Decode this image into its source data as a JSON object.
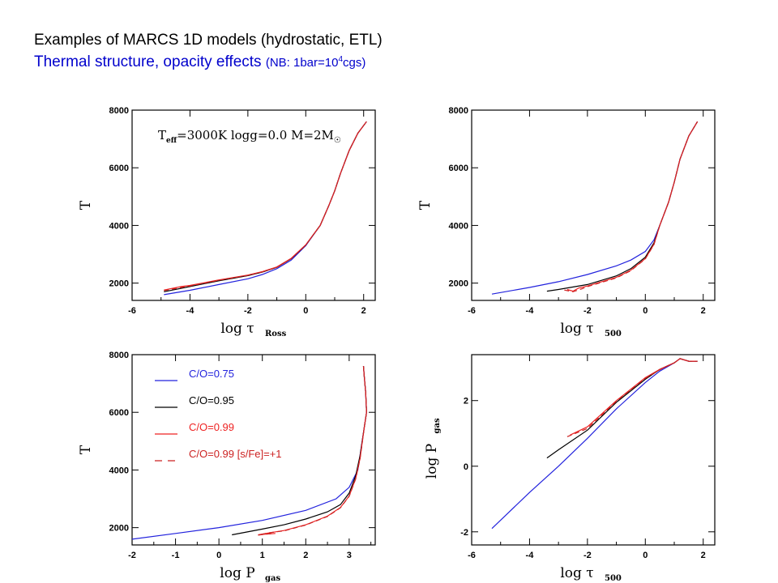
{
  "header": {
    "title": "Examples of MARCS 1D models (hydrostatic, ETL)",
    "subtitle_main": "Thermal structure, opacity effects",
    "subtitle_note_prefix": "(NB: 1bar=10",
    "subtitle_note_exp": "4",
    "subtitle_note_suffix": "cgs)"
  },
  "colors": {
    "c075": "#2222dd",
    "c095": "#000000",
    "c099": "#ee2222",
    "c099sfe": "#cc2222"
  },
  "chart_data": [
    {
      "type": "line",
      "id": "p1",
      "xlabel_main": "log τ",
      "xlabel_sub": "Ross",
      "ylabel": "T",
      "xlim": [
        -6,
        2.4
      ],
      "ylim": [
        1400,
        8000
      ],
      "xticks": [
        -6,
        -4,
        -2,
        0,
        2
      ],
      "yticks": [
        2000,
        4000,
        6000,
        8000
      ],
      "annotation": "T",
      "annotation_sub": "eff",
      "annotation_rest": "=3000K  logg=0.0  M=2M",
      "annotation_sym": "☉",
      "series": [
        {
          "key": "c075",
          "x": [
            -4.9,
            -4,
            -3,
            -2,
            -1.5,
            -1,
            -0.5,
            0,
            0.5,
            0.8,
            1.0,
            1.2,
            1.5,
            1.8,
            2.1
          ],
          "y": [
            1600,
            1750,
            1950,
            2150,
            2300,
            2500,
            2800,
            3300,
            4000,
            4700,
            5200,
            5800,
            6600,
            7200,
            7600
          ]
        },
        {
          "key": "c095",
          "x": [
            -4.9,
            -4,
            -3,
            -2,
            -1.5,
            -1,
            -0.5,
            0,
            0.5,
            0.8,
            1.0,
            1.2,
            1.5,
            1.8,
            2.1
          ],
          "y": [
            1700,
            1880,
            2080,
            2260,
            2380,
            2550,
            2850,
            3320,
            4000,
            4700,
            5200,
            5800,
            6600,
            7200,
            7600
          ]
        },
        {
          "key": "c099",
          "x": [
            -4.9,
            -4.3,
            -4,
            -3,
            -2,
            -1.5,
            -1,
            -0.5,
            0,
            0.5,
            0.8,
            1.0,
            1.2,
            1.5,
            1.8,
            2.1
          ],
          "y": [
            1760,
            1880,
            1920,
            2110,
            2280,
            2400,
            2560,
            2860,
            3330,
            4000,
            4700,
            5200,
            5800,
            6600,
            7200,
            7600
          ]
        },
        {
          "key": "c099sfe",
          "dashed": true,
          "x": [
            -4.9,
            -4.3,
            -4,
            -3,
            -2,
            -1.5,
            -1,
            -0.5,
            0,
            0.5,
            0.8,
            1.0,
            1.2,
            1.5,
            1.8,
            2.1
          ],
          "y": [
            1740,
            1850,
            1900,
            2100,
            2270,
            2390,
            2550,
            2850,
            3320,
            4000,
            4700,
            5200,
            5800,
            6600,
            7200,
            7600
          ]
        }
      ]
    },
    {
      "type": "line",
      "id": "p2",
      "xlabel_main": "log τ",
      "xlabel_sub": "500",
      "ylabel": "T",
      "xlim": [
        -6,
        2.4
      ],
      "ylim": [
        1400,
        8000
      ],
      "xticks": [
        -6,
        -4,
        -2,
        0,
        2
      ],
      "yticks": [
        2000,
        4000,
        6000,
        8000
      ],
      "series": [
        {
          "key": "c075",
          "x": [
            -5.3,
            -4,
            -3,
            -2,
            -1,
            -0.5,
            0,
            0.3,
            0.5,
            0.8,
            1.0,
            1.2,
            1.5,
            1.8
          ],
          "y": [
            1620,
            1850,
            2050,
            2300,
            2600,
            2800,
            3100,
            3500,
            4000,
            4800,
            5500,
            6300,
            7100,
            7600
          ]
        },
        {
          "key": "c095",
          "x": [
            -3.4,
            -3,
            -2,
            -1,
            -0.5,
            0,
            0.3,
            0.5,
            0.8,
            1.0,
            1.2,
            1.5,
            1.8
          ],
          "y": [
            1720,
            1780,
            1950,
            2250,
            2500,
            2900,
            3400,
            4000,
            4800,
            5500,
            6300,
            7100,
            7600
          ]
        },
        {
          "key": "c099",
          "x": [
            -2.7,
            -2.5,
            -2.3,
            -2,
            -1,
            -0.5,
            0,
            0.3,
            0.5,
            0.8,
            1.0,
            1.2,
            1.5,
            1.8
          ],
          "y": [
            1780,
            1720,
            1830,
            1900,
            2200,
            2450,
            2850,
            3350,
            4000,
            4800,
            5500,
            6300,
            7100,
            7600
          ]
        },
        {
          "key": "c099sfe",
          "dashed": true,
          "x": [
            -2.8,
            -2.5,
            -2.2,
            -2,
            -1,
            -0.5,
            0,
            0.3,
            0.5,
            0.8,
            1.0,
            1.2,
            1.5,
            1.8
          ],
          "y": [
            1760,
            1700,
            1800,
            1880,
            2180,
            2430,
            2840,
            3340,
            4000,
            4800,
            5500,
            6300,
            7100,
            7600
          ]
        }
      ]
    },
    {
      "type": "line",
      "id": "p3",
      "xlabel_main": "log P",
      "xlabel_sub": "gas",
      "ylabel": "T",
      "xlim": [
        -2,
        3.6
      ],
      "ylim": [
        1400,
        8000
      ],
      "xticks": [
        -2,
        -1,
        0,
        1,
        2,
        3
      ],
      "yticks": [
        2000,
        4000,
        6000,
        8000
      ],
      "legend": [
        {
          "key": "c075",
          "label": "C/O=0.75"
        },
        {
          "key": "c095",
          "label": "C/O=0.95"
        },
        {
          "key": "c099",
          "label": "C/O=0.99"
        },
        {
          "key": "c099sfe",
          "label": "C/O=0.99 [s/Fe]=+1",
          "dashed": true
        }
      ],
      "series": [
        {
          "key": "c075",
          "x": [
            -2,
            -1,
            0,
            1,
            2,
            2.7,
            3.0,
            3.2,
            3.3,
            3.35,
            3.4,
            3.38,
            3.35,
            3.33
          ],
          "y": [
            1600,
            1800,
            2000,
            2250,
            2600,
            3000,
            3400,
            4000,
            5000,
            5500,
            6000,
            6700,
            7200,
            7600
          ]
        },
        {
          "key": "c095",
          "x": [
            0.3,
            1,
            1.5,
            2,
            2.5,
            2.8,
            3.0,
            3.15,
            3.25,
            3.35,
            3.4,
            3.38,
            3.35,
            3.33
          ],
          "y": [
            1750,
            1950,
            2100,
            2300,
            2550,
            2800,
            3200,
            3800,
            4500,
            5500,
            6000,
            6700,
            7200,
            7600
          ]
        },
        {
          "key": "c099",
          "x": [
            1.3,
            1.1,
            0.9,
            1.2,
            1.5,
            2,
            2.5,
            2.8,
            3.0,
            3.15,
            3.25,
            3.35,
            3.4,
            3.38,
            3.35,
            3.33
          ],
          "y": [
            1800,
            1780,
            1750,
            1830,
            1900,
            2100,
            2400,
            2700,
            3100,
            3700,
            4400,
            5500,
            6000,
            6700,
            7200,
            7600
          ]
        },
        {
          "key": "c099sfe",
          "dashed": true,
          "x": [
            1.2,
            1.0,
            0.9,
            1.15,
            1.5,
            2,
            2.5,
            2.8,
            3.0,
            3.15,
            3.25,
            3.35,
            3.4,
            3.38,
            3.35,
            3.33
          ],
          "y": [
            1790,
            1760,
            1740,
            1820,
            1890,
            2090,
            2390,
            2690,
            3090,
            3690,
            4390,
            5500,
            6000,
            6700,
            7200,
            7600
          ]
        }
      ]
    },
    {
      "type": "line",
      "id": "p4",
      "xlabel_main": "log τ",
      "xlabel_sub": "500",
      "ylabel_main": "log P",
      "ylabel_sub": "gas",
      "xlim": [
        -6,
        2.4
      ],
      "ylim": [
        -2.4,
        3.4
      ],
      "xticks": [
        -6,
        -4,
        -2,
        0,
        2
      ],
      "yticks": [
        -2,
        0,
        2
      ],
      "series": [
        {
          "key": "c075",
          "x": [
            -5.3,
            -4,
            -3,
            -2,
            -1,
            0,
            0.5,
            1,
            1.2,
            1.5,
            1.8
          ],
          "y": [
            -1.9,
            -0.8,
            0,
            0.85,
            1.75,
            2.55,
            2.9,
            3.15,
            3.28,
            3.2,
            3.2
          ]
        },
        {
          "key": "c095",
          "x": [
            -3.4,
            -3,
            -2,
            -1,
            0,
            0.5,
            1,
            1.2,
            1.5,
            1.8
          ],
          "y": [
            0.25,
            0.5,
            1.1,
            1.95,
            2.65,
            2.95,
            3.15,
            3.28,
            3.2,
            3.2
          ]
        },
        {
          "key": "c099",
          "x": [
            -2.6,
            -2,
            -1,
            0,
            0.5,
            1,
            1.2,
            1.5,
            1.8
          ],
          "y": [
            0.95,
            1.2,
            2.0,
            2.7,
            2.95,
            3.15,
            3.28,
            3.2,
            3.2
          ]
        },
        {
          "key": "c099sfe",
          "dashed": true,
          "x": [
            -2.7,
            -2,
            -1,
            0,
            0.5,
            1,
            1.2,
            1.5,
            1.8
          ],
          "y": [
            0.9,
            1.15,
            1.98,
            2.68,
            2.94,
            3.15,
            3.28,
            3.2,
            3.2
          ]
        }
      ]
    }
  ]
}
